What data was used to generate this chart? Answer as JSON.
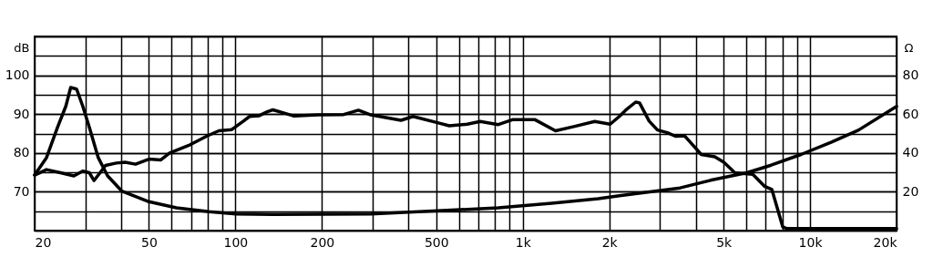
{
  "chart_data": {
    "type": "line",
    "ylabel": "dB",
    "y2label": "Ω",
    "log": "x",
    "grid": true,
    "line_style": "solid",
    "marker": "none",
    "xlim": [
      20,
      20000
    ],
    "xticks": [
      20,
      {
        "value": 30,
        "label": null
      },
      {
        "value": 40,
        "label": null
      },
      50,
      {
        "value": 60,
        "label": null
      },
      {
        "value": 70,
        "label": null
      },
      {
        "value": 80,
        "label": null
      },
      {
        "value": 90,
        "label": null
      },
      100,
      200,
      {
        "value": 300,
        "label": null
      },
      {
        "value": 400,
        "label": null
      },
      500,
      {
        "value": 600,
        "label": null
      },
      {
        "value": 700,
        "label": null
      },
      {
        "value": 800,
        "label": null
      },
      {
        "value": 900,
        "label": null
      },
      {
        "value": 1000,
        "label": "1k"
      },
      {
        "value": 2000,
        "label": "2k"
      },
      {
        "value": 3000,
        "label": null
      },
      {
        "value": 4000,
        "label": null
      },
      {
        "value": 5000,
        "label": "5k"
      },
      {
        "value": 6000,
        "label": null
      },
      {
        "value": 7000,
        "label": null
      },
      {
        "value": 8000,
        "label": null
      },
      {
        "value": 9000,
        "label": null
      },
      {
        "value": 10000,
        "label": "10k"
      },
      {
        "value": 20000,
        "label": "20k"
      }
    ],
    "ylim": [
      60,
      110
    ],
    "yticks": [
      {
        "value": 60,
        "label": null
      },
      {
        "value": 65,
        "label": null
      },
      70,
      {
        "value": 75,
        "label": null
      },
      80,
      {
        "value": 85,
        "label": null
      },
      90,
      {
        "value": 95,
        "label": null
      },
      100,
      {
        "value": 105,
        "label": null
      },
      {
        "value": 110,
        "label": null
      }
    ],
    "y2lim": [
      0,
      100
    ],
    "y2ticks": [
      {
        "value": 0,
        "label": null
      },
      20,
      40,
      60,
      80,
      {
        "value": 100,
        "label": null
      }
    ],
    "series": [
      {
        "color": "#000000",
        "x": [
          20,
          22,
          24.6,
          27.4,
          29.4,
          31,
          32.2,
          33.8,
          35.3,
          38.5,
          41.3,
          44.9,
          50,
          55,
          59,
          68.6,
          79.3,
          87.5,
          96.9,
          106.6,
          112,
          121,
          129,
          135,
          149,
          160,
          194,
          238,
          268,
          296,
          377,
          415,
          505,
          555,
          641,
          711,
          822,
          925,
          1100,
          1300,
          1506,
          1780,
          2015,
          2168,
          2280,
          2472,
          2550,
          2754,
          2944,
          3190,
          3400,
          3660,
          4180,
          4660,
          5010,
          5470,
          6320,
          6950,
          7360,
          8040,
          8340,
          20000
        ],
        "values": [
          74.3,
          75.7,
          74.9,
          74.1,
          75.3,
          74.9,
          72.9,
          74.9,
          76.8,
          77.4,
          77.6,
          77.1,
          78.4,
          78.2,
          80,
          81.9,
          84.3,
          85.7,
          86,
          88.2,
          89.4,
          89.6,
          90.6,
          91.1,
          90.2,
          89.5,
          89.8,
          89.9,
          91,
          89.8,
          88.4,
          89.4,
          87.8,
          87,
          87.4,
          88.1,
          87.3,
          88.6,
          88.6,
          85.7,
          86.8,
          88.1,
          87.4,
          89.4,
          91,
          93.1,
          92.9,
          88.2,
          85.9,
          85.2,
          84.3,
          84.4,
          79.6,
          79,
          77.6,
          74.9,
          74.5,
          71.4,
          70.6,
          60.9,
          60.5,
          60.5
        ]
      },
      {
        "color": "#000000",
        "axis": "y2",
        "x": [
          20,
          22,
          24,
          25.7,
          26.7,
          28,
          29.4,
          31,
          33.3,
          35.9,
          40.2,
          50,
          62.3,
          81,
          100,
          135,
          296,
          505,
          822,
          1260,
          1830,
          2168,
          3530,
          4500,
          6030,
          7320,
          9300,
          11830,
          14720,
          20000
        ],
        "values": [
          28.6,
          37.6,
          53,
          64.2,
          73.7,
          72.9,
          64.2,
          53.3,
          37.6,
          28.2,
          20.4,
          14.9,
          11.7,
          9.7,
          8.6,
          8.3,
          8.6,
          10.2,
          11.7,
          14.1,
          16.4,
          18,
          22,
          25.9,
          29.8,
          33.7,
          39.2,
          45.5,
          51.7,
          64
        ]
      }
    ]
  }
}
